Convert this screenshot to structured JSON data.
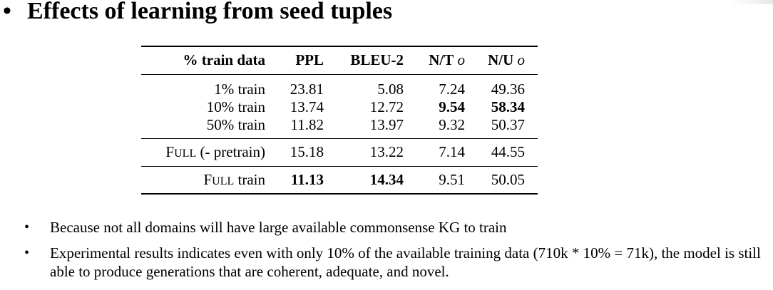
{
  "title": {
    "bullet": "•",
    "text": "Effects of learning from seed tuples"
  },
  "table": {
    "headers": [
      "% train data",
      "PPL",
      "BLEU-2",
      "N/T",
      "N/U"
    ],
    "header_suffix": "o",
    "groups": [
      [
        {
          "label": "1% train",
          "ppl": "23.81",
          "bleu": "5.08",
          "nt": "7.24",
          "nu": "49.36"
        },
        {
          "label": "10% train",
          "ppl": "13.74",
          "bleu": "12.72",
          "nt": "9.54",
          "nu": "58.34"
        },
        {
          "label": "50% train",
          "ppl": "11.82",
          "bleu": "13.97",
          "nt": "9.32",
          "nu": "50.37"
        }
      ],
      [
        {
          "label_prefix": "F",
          "label_sc": "ULL",
          "label_rest": " (- pretrain)",
          "ppl": "15.18",
          "bleu": "13.22",
          "nt": "7.14",
          "nu": "44.55"
        }
      ],
      [
        {
          "label_prefix": "F",
          "label_sc": "ULL",
          "label_rest": " train",
          "ppl": "11.13",
          "bleu": "14.34",
          "nt": "9.51",
          "nu": "50.05"
        }
      ]
    ]
  },
  "notes": [
    {
      "bullet": "•",
      "text": "Because not all domains will have large available commonsense KG to train"
    },
    {
      "bullet": "•",
      "text": "Experimental results indicates even with only 10% of the available training data (710k * 10% = 71k), the model is still able to produce generations that are coherent, adequate, and novel."
    }
  ]
}
